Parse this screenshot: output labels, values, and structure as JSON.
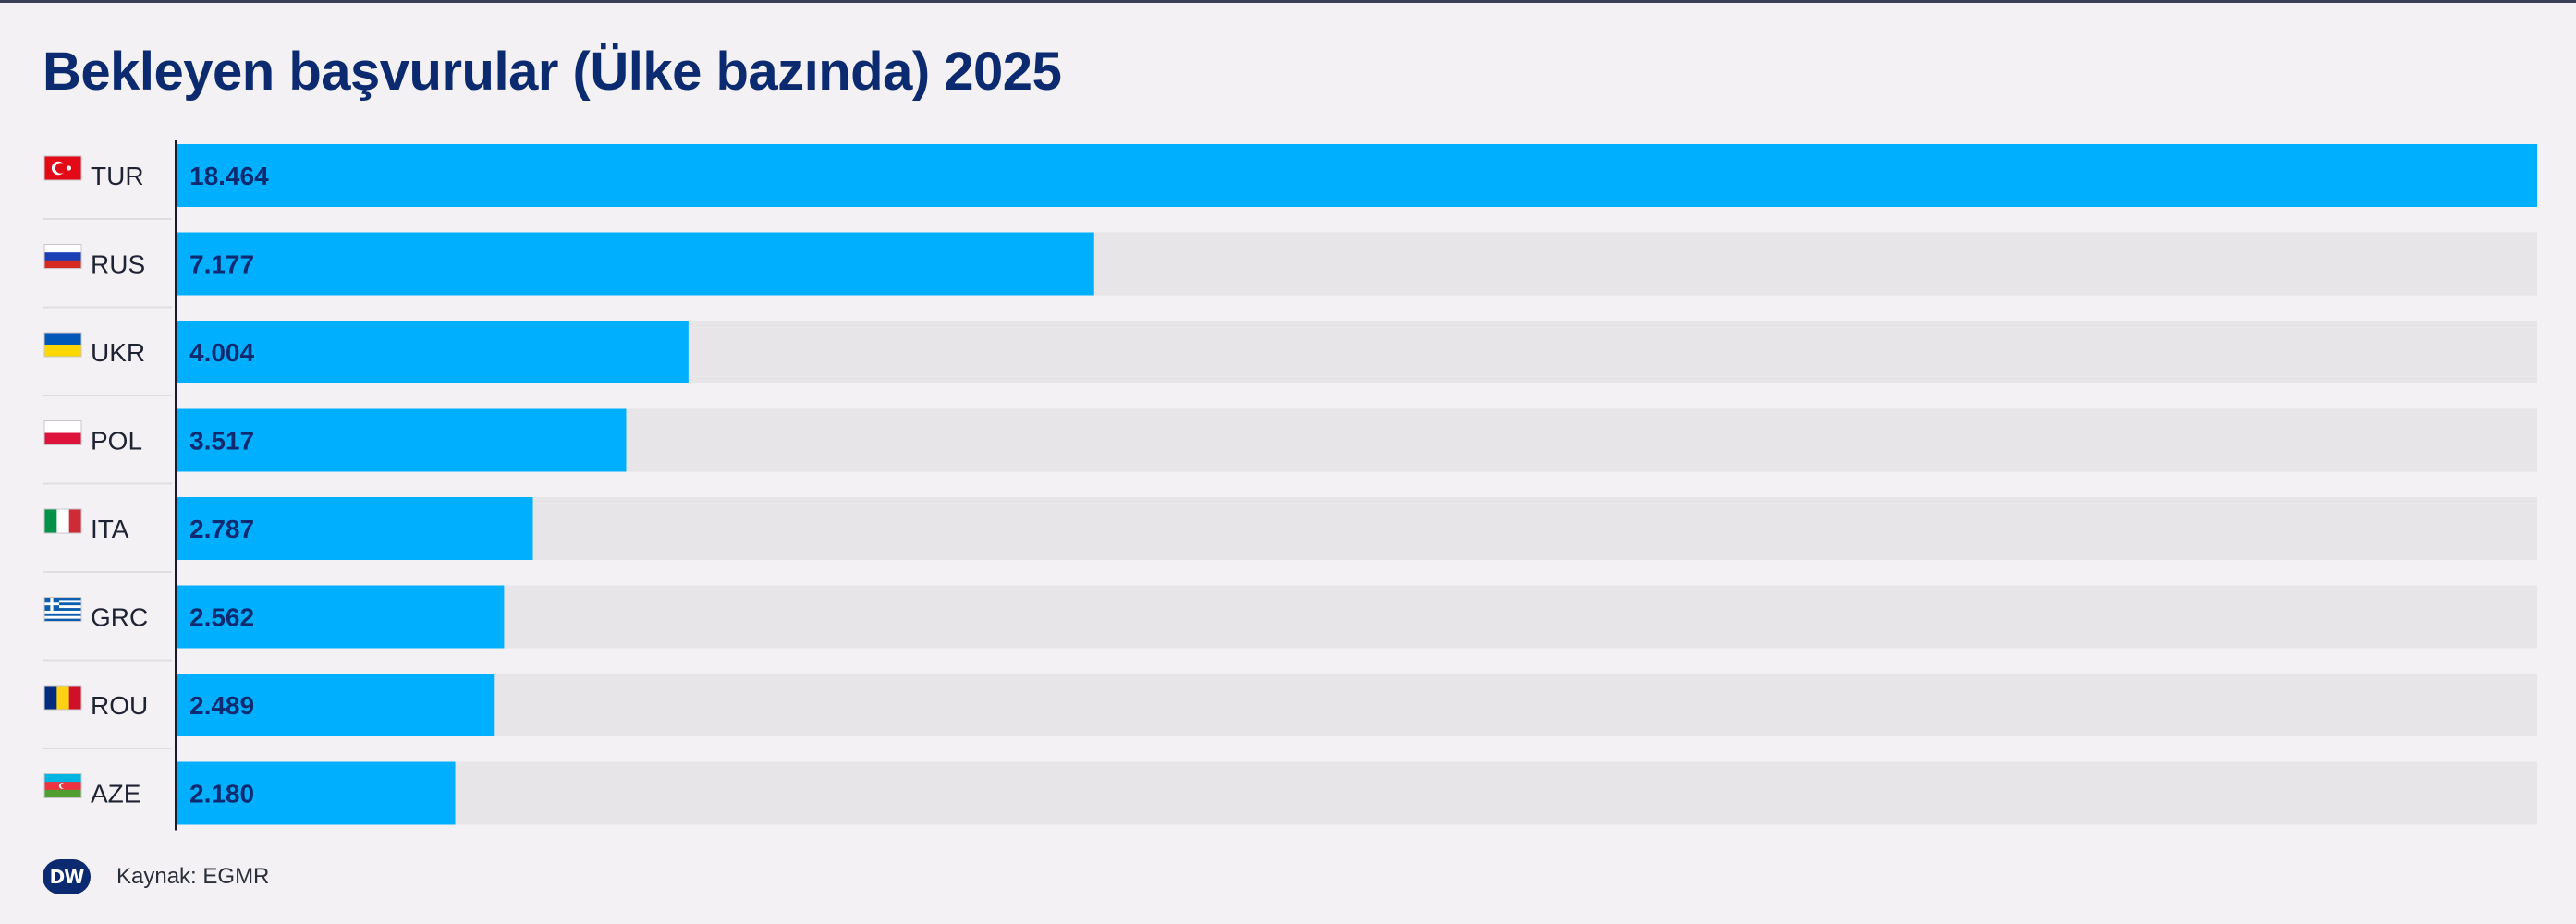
{
  "chart_data": {
    "type": "bar",
    "orientation": "horizontal",
    "title": "Bekleyen başvurular (Ülke bazında) 2025",
    "categories": [
      "TUR",
      "RUS",
      "UKR",
      "POL",
      "ITA",
      "GRC",
      "ROU",
      "AZE"
    ],
    "values": [
      18464,
      7177,
      4004,
      3517,
      2787,
      2562,
      2489,
      2180
    ],
    "value_labels": [
      "18.464",
      "7.177",
      "4.004",
      "3.517",
      "2.787",
      "2.562",
      "2.489",
      "2.180"
    ],
    "flags": [
      "flag-turkey-icon",
      "flag-russia-icon",
      "flag-ukraine-icon",
      "flag-poland-icon",
      "flag-italy-icon",
      "flag-greece-icon",
      "flag-romania-icon",
      "flag-azerbaijan-icon"
    ],
    "xlim": [
      0,
      18464
    ],
    "grid": false,
    "colors": {
      "bar": "#00b0ff",
      "track": "#e7e5e7",
      "label": "#0b2a6f"
    }
  },
  "footer": {
    "logo_text": "DW",
    "source": "Kaynak: EGMR"
  }
}
